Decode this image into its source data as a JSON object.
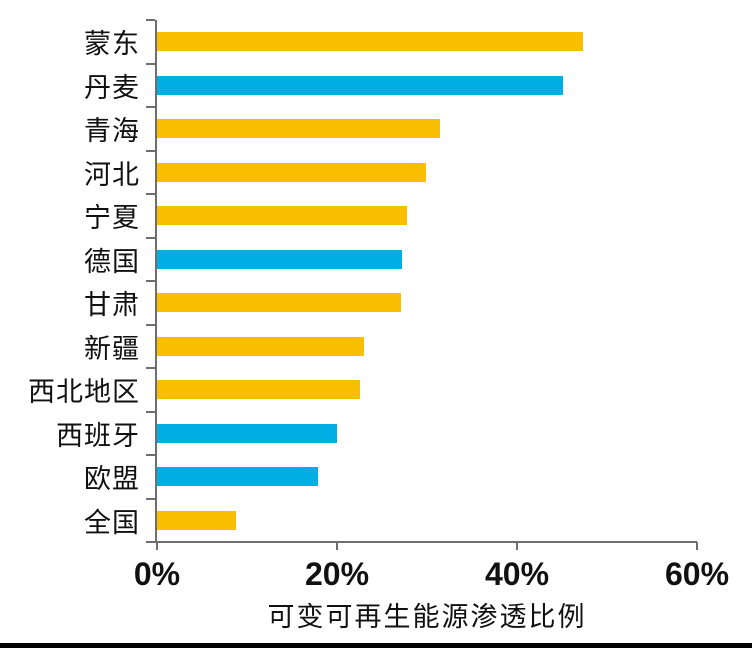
{
  "chart_data": {
    "type": "bar",
    "orientation": "horizontal",
    "title": "",
    "xlabel": "可变可再生能源渗透比例",
    "ylabel": "",
    "xlim": [
      0,
      60
    ],
    "x_tick_labels": [
      "0%",
      "20%",
      "40%",
      "60%"
    ],
    "x_tick_values": [
      0,
      20,
      40,
      60
    ],
    "grid": false,
    "legend": "none",
    "categories": [
      "蒙东",
      "丹麦",
      "青海",
      "河北",
      "宁夏",
      "德国",
      "甘肃",
      "新疆",
      "西北地区",
      "西班牙",
      "欧盟",
      "全国"
    ],
    "values": [
      47.3,
      45.1,
      31.4,
      29.9,
      27.8,
      27.2,
      27.1,
      23.0,
      22.6,
      20.0,
      17.9,
      8.8
    ],
    "bar_color_keys": [
      "yellow",
      "blue",
      "yellow",
      "yellow",
      "yellow",
      "blue",
      "yellow",
      "yellow",
      "yellow",
      "blue",
      "blue",
      "yellow"
    ],
    "palette": {
      "yellow": "#F9BE00",
      "blue": "#00AEE6"
    },
    "axis_color": "#6E6E6E",
    "text_color": "#111111"
  }
}
